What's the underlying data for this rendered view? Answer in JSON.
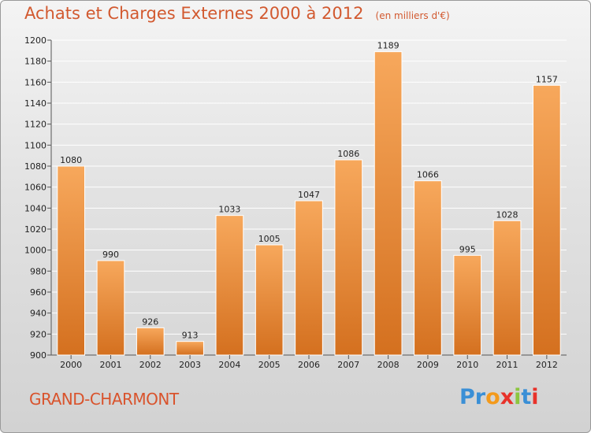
{
  "header": {
    "title": "Achats et Charges Externes 2000 à 2012",
    "unit": "(en milliers d'€)"
  },
  "footer": {
    "commune": "GRAND-CHARMONT",
    "brand_letters": [
      {
        "ch": "P",
        "color": "#3a8fd6"
      },
      {
        "ch": "r",
        "color": "#3a8fd6"
      },
      {
        "ch": "o",
        "color": "#f39a1c"
      },
      {
        "ch": "x",
        "color": "#e8322a"
      },
      {
        "ch": "i",
        "color": "#8cc63f"
      },
      {
        "ch": "t",
        "color": "#3a8fd6"
      },
      {
        "ch": "i",
        "color": "#e8322a"
      }
    ]
  },
  "colors": {
    "bar_top": "#f7a85c",
    "bar_bottom": "#d4701f",
    "title": "#d2592f",
    "grid": "#ffffff",
    "text": "#222222"
  },
  "chart_data": {
    "type": "bar",
    "categories": [
      "2000",
      "2001",
      "2002",
      "2003",
      "2004",
      "2005",
      "2006",
      "2007",
      "2008",
      "2009",
      "2010",
      "2011",
      "2012"
    ],
    "values": [
      1080,
      990,
      926,
      913,
      1033,
      1005,
      1047,
      1086,
      1189,
      1066,
      995,
      1028,
      1157
    ],
    "ylim": [
      900,
      1200
    ],
    "yticks": [
      900,
      920,
      940,
      960,
      980,
      1000,
      1020,
      1040,
      1060,
      1080,
      1100,
      1120,
      1140,
      1160,
      1180,
      1200
    ],
    "grid": true,
    "title": "Achats et Charges Externes 2000 à 2012",
    "xlabel": "",
    "ylabel": ""
  }
}
